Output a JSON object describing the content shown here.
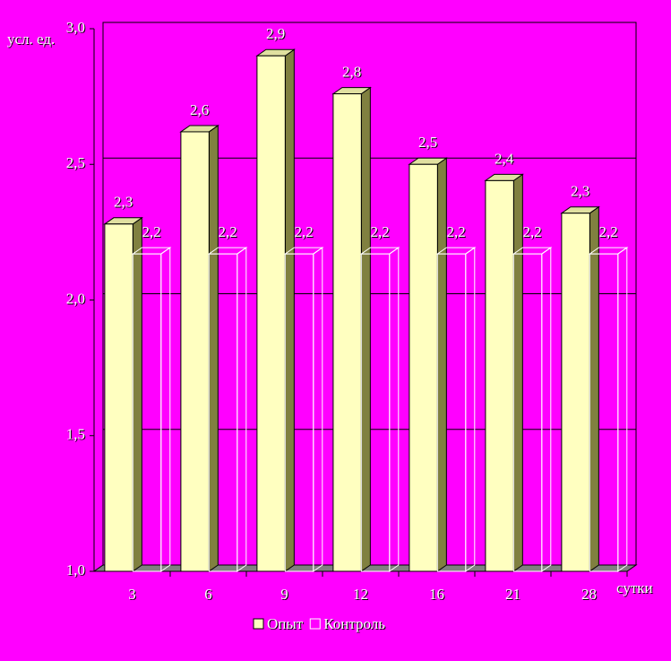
{
  "chart_data": {
    "type": "bar3d",
    "y_label": "усл. ед.",
    "x_label": "сутки",
    "categories": [
      "3",
      "6",
      "9",
      "12",
      "16",
      "21",
      "28"
    ],
    "series": [
      {
        "name": "Опыт",
        "color": "#ffffc0",
        "values": [
          2.28,
          2.62,
          2.9,
          2.76,
          2.5,
          2.44,
          2.32
        ],
        "value_labels": [
          "2,3",
          "2,6",
          "2,9",
          "2,8",
          "2,5",
          "2,4",
          "2,3"
        ]
      },
      {
        "name": "Контроль",
        "color": "none",
        "values": [
          2.17,
          2.17,
          2.17,
          2.17,
          2.17,
          2.17,
          2.17
        ],
        "value_labels": [
          "2,2",
          "2,2",
          "2,2",
          "2,2",
          "2,2",
          "2,2",
          "2,2"
        ]
      }
    ],
    "ylim": [
      1.0,
      3.0
    ],
    "yticks": [
      {
        "value": 1.0,
        "label": "1,0"
      },
      {
        "value": 1.5,
        "label": "1,5"
      },
      {
        "value": 2.0,
        "label": "2,0"
      },
      {
        "value": 2.5,
        "label": "2,5"
      },
      {
        "value": 3.0,
        "label": "3,0"
      }
    ],
    "grid": true
  }
}
